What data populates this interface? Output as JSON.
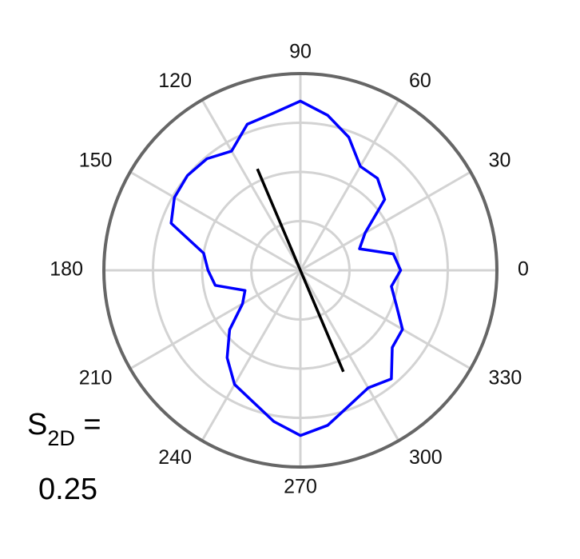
{
  "chart_data": {
    "type": "polar-line",
    "angular_ticks": [
      "0",
      "30",
      "60",
      "90",
      "120",
      "150",
      "180",
      "210",
      "240",
      "270",
      "300",
      "330"
    ],
    "angular_tick_values": [
      0,
      30,
      60,
      90,
      120,
      150,
      180,
      210,
      240,
      270,
      300,
      330
    ],
    "radial_range": [
      0,
      1
    ],
    "radial_grid": [
      0.25,
      0.5,
      0.75,
      1.0
    ],
    "radial_tick_labels": false,
    "grid": true,
    "series": [
      {
        "color": "#0000ff",
        "theta_deg": [
          0,
          10,
          20,
          30,
          40,
          50,
          60,
          70,
          80,
          90,
          100,
          110,
          120,
          130,
          140,
          150,
          160,
          170,
          180,
          190,
          200,
          210,
          220,
          230,
          240,
          250,
          260,
          270,
          280,
          290,
          300,
          310,
          320,
          330,
          340,
          350,
          360
        ],
        "r": [
          0.51,
          0.48,
          0.32,
          0.38,
          0.56,
          0.61,
          0.61,
          0.72,
          0.8,
          0.86,
          0.81,
          0.79,
          0.7,
          0.74,
          0.75,
          0.74,
          0.7,
          0.5,
          0.47,
          0.44,
          0.3,
          0.34,
          0.47,
          0.58,
          0.67,
          0.71,
          0.78,
          0.84,
          0.8,
          0.73,
          0.69,
          0.72,
          0.61,
          0.6,
          0.52,
          0.47,
          0.51
        ]
      }
    ],
    "mean_axis": {
      "color": "#000000",
      "angle_deg": 113,
      "half_length": 0.56
    },
    "annotation": {
      "label_main": "S",
      "label_sub": "2D",
      "label_eq": " =",
      "value": "0.25"
    }
  },
  "colors": {
    "outer_circle": "#666666",
    "grid": "#d3d3d3"
  }
}
